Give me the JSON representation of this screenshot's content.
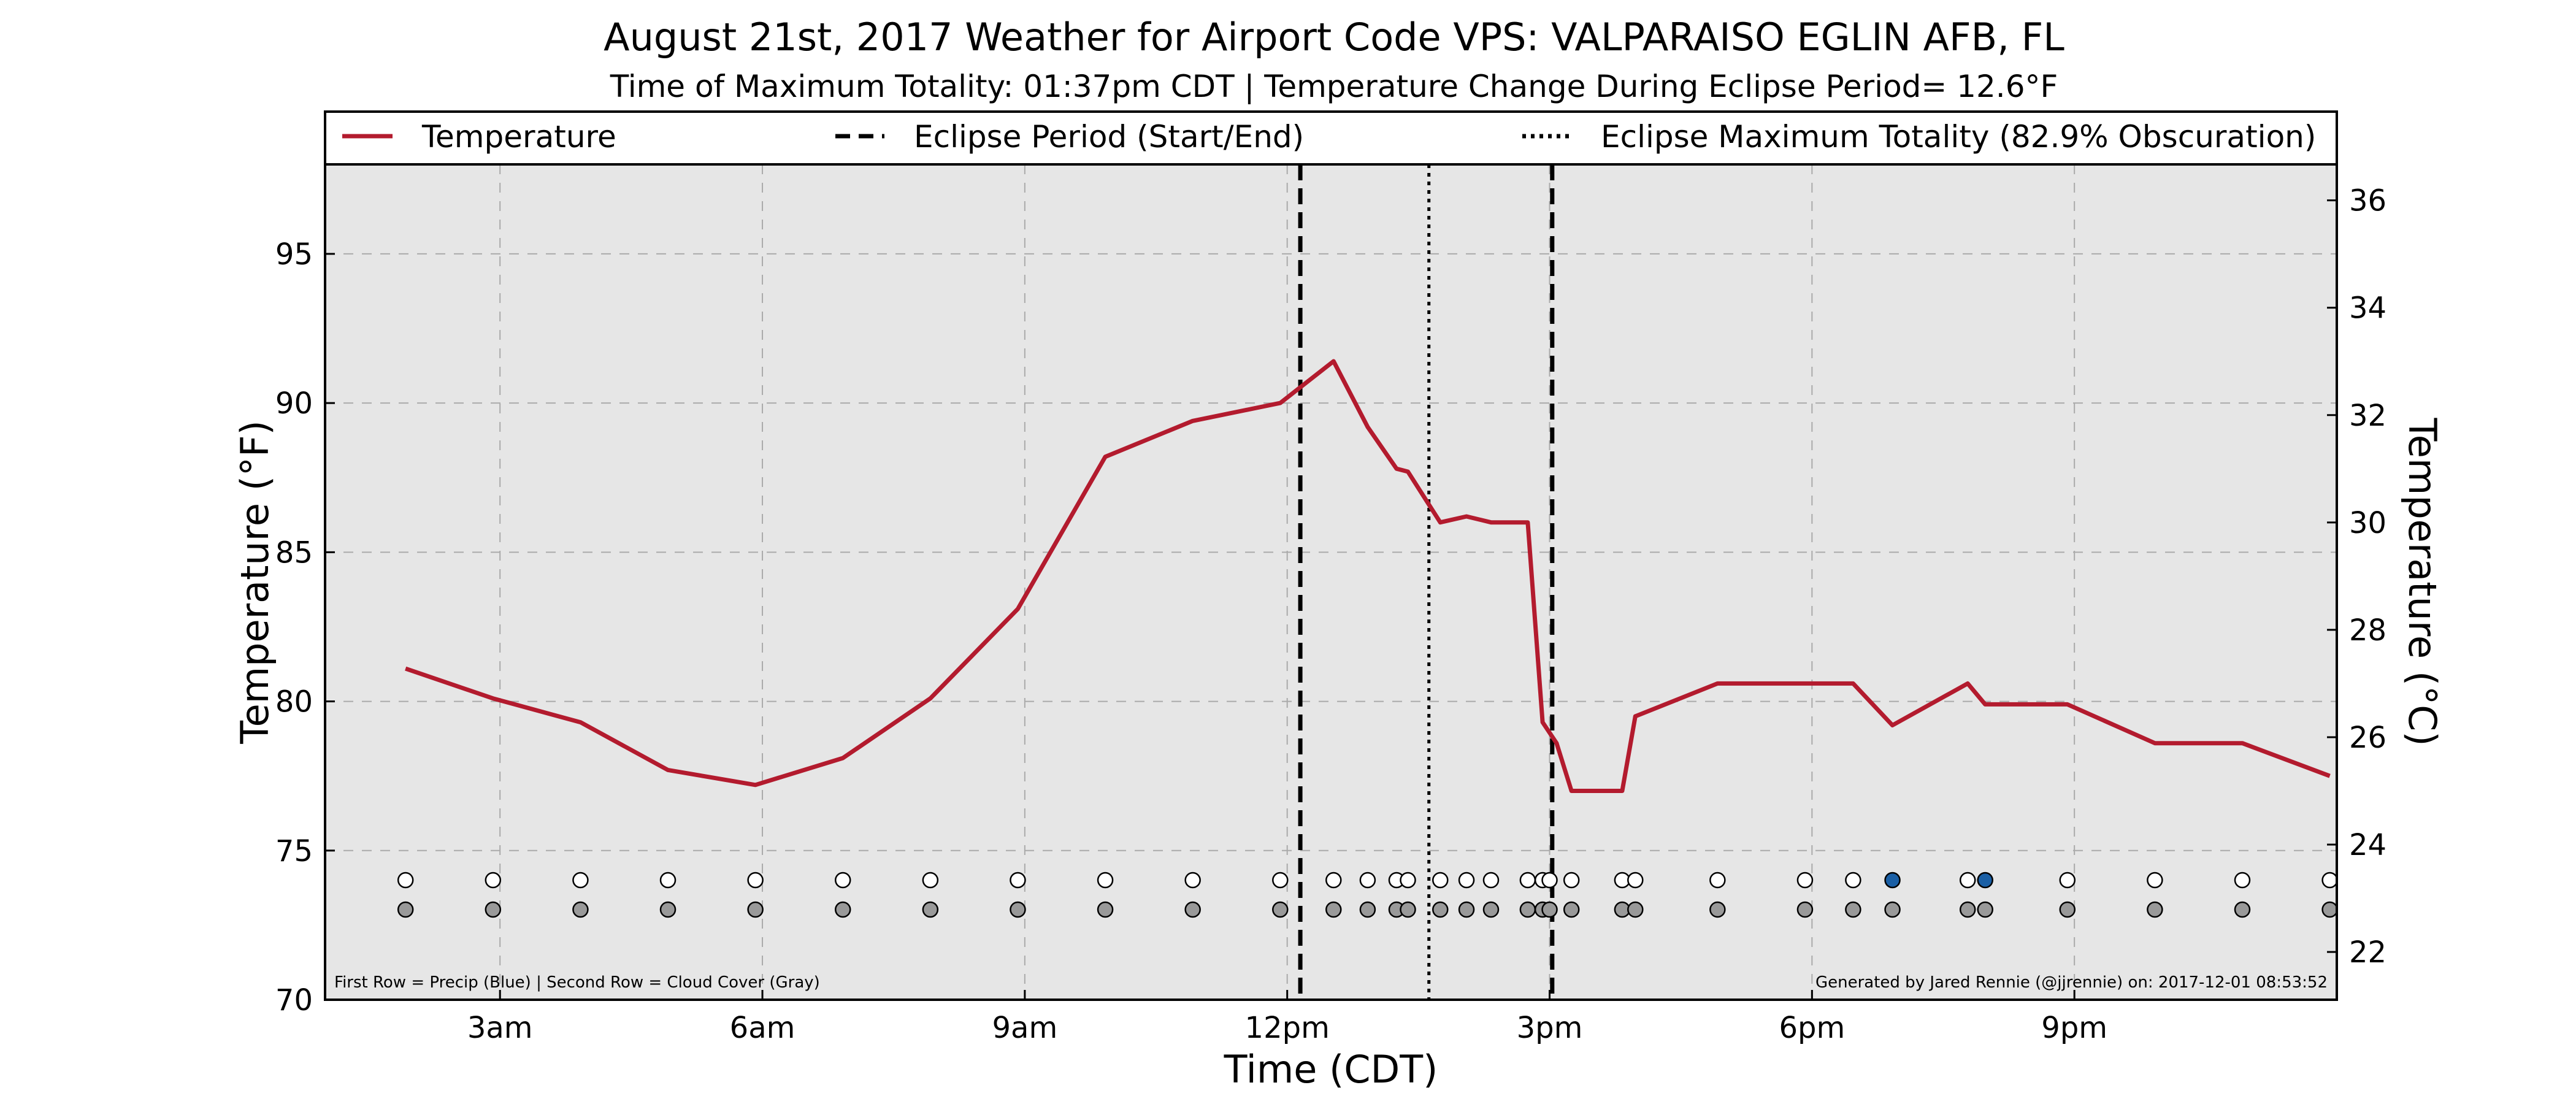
{
  "chart_data": {
    "type": "line",
    "title": "August 21st, 2017 Weather for Airport Code VPS: VALPARAISO EGLIN AFB, FL",
    "subtitle": "Time of Maximum Totality: 01:37pm CDT | Temperature Change During Eclipse Period= 12.6°F",
    "xlabel": "Time (CDT)",
    "ylabel": "Temperature (°F)",
    "ylabel_right": "Temperature (°C)",
    "x_ticks": [
      {
        "hour": 3,
        "label": "3am"
      },
      {
        "hour": 6,
        "label": "6am"
      },
      {
        "hour": 9,
        "label": "9am"
      },
      {
        "hour": 12,
        "label": "12pm"
      },
      {
        "hour": 15,
        "label": "3pm"
      },
      {
        "hour": 18,
        "label": "6pm"
      },
      {
        "hour": 21,
        "label": "9pm"
      }
    ],
    "xlim": [
      1,
      24
    ],
    "ylim": [
      70,
      98
    ],
    "y_ticks": [
      70,
      75,
      80,
      85,
      90,
      95
    ],
    "y2lim": [
      21.11,
      36.67
    ],
    "y2_ticks": [
      22,
      24,
      26,
      28,
      30,
      32,
      34,
      36
    ],
    "grid": true,
    "legend": {
      "placement": "top",
      "items": [
        {
          "label": "Temperature",
          "style": "solid",
          "color": "#b31b2e"
        },
        {
          "label": "Eclipse Period (Start/End)",
          "style": "dashed",
          "color": "#000000"
        },
        {
          "label": "Eclipse Maximum Totality (82.9% Obscuration)",
          "style": "dotted",
          "color": "#000000"
        }
      ]
    },
    "series": [
      {
        "name": "Temperature",
        "color": "#b31b2e",
        "points": [
          [
            1.92,
            81.1
          ],
          [
            2.92,
            80.1
          ],
          [
            3.92,
            79.3
          ],
          [
            4.92,
            77.7
          ],
          [
            5.92,
            77.2
          ],
          [
            6.92,
            78.1
          ],
          [
            7.92,
            80.1
          ],
          [
            8.92,
            83.1
          ],
          [
            9.92,
            88.2
          ],
          [
            10.92,
            89.4
          ],
          [
            11.92,
            90.0
          ],
          [
            12.53,
            91.4
          ],
          [
            12.92,
            89.2
          ],
          [
            13.25,
            87.8
          ],
          [
            13.38,
            87.7
          ],
          [
            13.75,
            86.0
          ],
          [
            14.05,
            86.2
          ],
          [
            14.33,
            86.0
          ],
          [
            14.75,
            86.0
          ],
          [
            14.92,
            79.3
          ],
          [
            15.08,
            78.6
          ],
          [
            15.25,
            77.0
          ],
          [
            15.83,
            77.0
          ],
          [
            15.98,
            79.5
          ],
          [
            16.92,
            80.6
          ],
          [
            17.92,
            80.6
          ],
          [
            18.47,
            80.6
          ],
          [
            18.92,
            79.2
          ],
          [
            19.78,
            80.6
          ],
          [
            19.98,
            79.9
          ],
          [
            20.35,
            79.9
          ],
          [
            20.92,
            79.9
          ],
          [
            21.92,
            78.6
          ],
          [
            22.92,
            78.6
          ],
          [
            23.92,
            77.5
          ]
        ]
      }
    ],
    "eclipse": {
      "start_hour": 12.15,
      "end_hour": 15.03,
      "max_hour": 13.62
    },
    "obs_rows": {
      "precip_color": "#1a5fa5",
      "precip_empty_color": "#ffffff",
      "cloud_color": "#999999",
      "times": [
        1.92,
        2.92,
        3.92,
        4.92,
        5.92,
        6.92,
        7.92,
        8.92,
        9.92,
        10.92,
        11.92,
        12.53,
        12.92,
        13.25,
        13.38,
        13.75,
        14.05,
        14.33,
        14.75,
        14.92,
        15.0,
        15.25,
        15.83,
        15.98,
        16.92,
        17.92,
        18.47,
        18.92,
        19.78,
        19.98,
        20.92,
        21.92,
        22.92,
        23.92
      ],
      "precip_times": [
        18.92,
        19.98
      ]
    },
    "footnote_left": "First Row = Precip (Blue) | Second Row = Cloud Cover (Gray)",
    "footnote_right": "Generated by Jared Rennie (@jjrennie) on: 2017-12-01 08:53:52"
  }
}
